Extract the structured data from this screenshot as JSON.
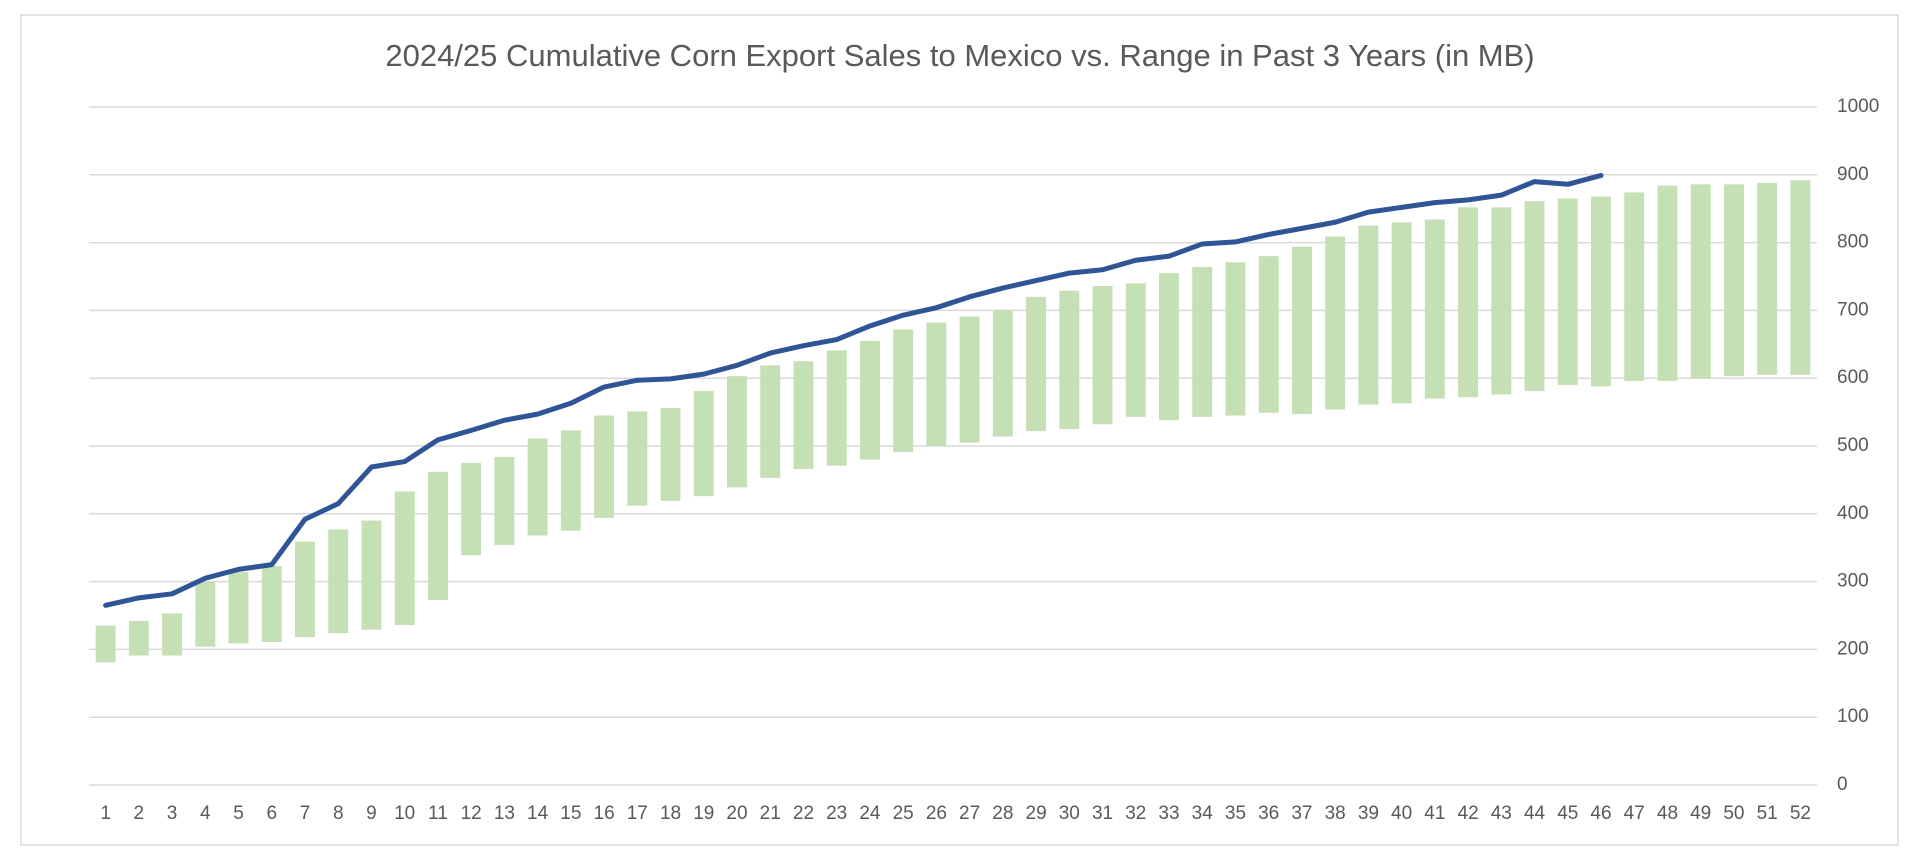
{
  "chart_data": {
    "type": "range-bar-line",
    "title": "2024/25 Cumulative Corn Export Sales to Mexico vs. Range in Past 3 Years (in MB)",
    "categories": [
      1,
      2,
      3,
      4,
      5,
      6,
      7,
      8,
      9,
      10,
      11,
      12,
      13,
      14,
      15,
      16,
      17,
      18,
      19,
      20,
      21,
      22,
      23,
      24,
      25,
      26,
      27,
      28,
      29,
      30,
      31,
      32,
      33,
      34,
      35,
      36,
      37,
      38,
      39,
      40,
      41,
      42,
      43,
      44,
      45,
      46,
      47,
      48,
      49,
      50,
      51,
      52
    ],
    "range": {
      "color": "#c5e0b4",
      "low": [
        181,
        191,
        191,
        204,
        209,
        211,
        218,
        224,
        229,
        236,
        273,
        339,
        354,
        368,
        375,
        394,
        412,
        419,
        426,
        439,
        453,
        466,
        471,
        480,
        491,
        500,
        505,
        514,
        522,
        525,
        532,
        543,
        538,
        543,
        545,
        549,
        547,
        554,
        561,
        563,
        570,
        572,
        576,
        581,
        590,
        588,
        596,
        596,
        599,
        603,
        605,
        605
      ],
      "high": [
        235,
        242,
        253,
        300,
        314,
        323,
        359,
        377,
        390,
        433,
        462,
        475,
        484,
        511,
        523,
        545,
        551,
        556,
        581,
        603,
        619,
        625,
        641,
        655,
        672,
        682,
        691,
        700,
        720,
        729,
        736,
        740,
        755,
        764,
        771,
        780,
        794,
        809,
        825,
        830,
        834,
        852,
        852,
        861,
        865,
        868,
        874,
        884,
        886,
        886,
        888,
        892
      ]
    },
    "line": {
      "color": "#2f5597",
      "values": [
        265,
        276,
        282,
        305,
        318,
        325,
        392,
        415,
        469,
        477,
        509,
        523,
        538,
        547,
        563,
        587,
        597,
        599,
        606,
        619,
        637,
        648,
        657,
        677,
        693,
        704,
        720,
        733,
        744,
        755,
        760,
        774,
        780,
        798,
        801,
        812,
        821,
        830,
        845,
        852,
        859,
        863,
        870,
        890,
        886,
        899,
        null,
        null,
        null,
        null,
        null,
        null
      ]
    },
    "ylim": [
      0,
      1000
    ],
    "yticks": [
      0,
      100,
      200,
      300,
      400,
      500,
      600,
      700,
      800,
      900,
      1000
    ],
    "grid": true,
    "y_axis_side": "right"
  }
}
